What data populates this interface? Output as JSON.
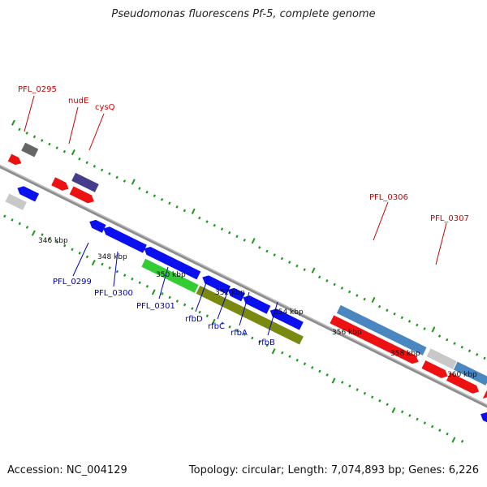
{
  "title": "Pseudomonas fluorescens Pf-5, complete genome",
  "footer": {
    "accession": "Accession: NC_004129",
    "summary": "Topology: circular; Length: 7,074,893 bp; Genes: 6,226"
  },
  "colors": {
    "backbone": "#8c8c8c",
    "tick": "#1a9a1a",
    "label_forward": "#cc0000",
    "label_reverse": "#0000bb"
  },
  "scale_labels": [
    "346 kbp",
    "348 kbp",
    "350 kbp",
    "352 kbp",
    "354 kbp",
    "356 kbp",
    "358 kbp",
    "360 kbp"
  ],
  "gene_labels": [
    {
      "text": "PFL_0295",
      "strand": "forward"
    },
    {
      "text": "nudE",
      "strand": "forward"
    },
    {
      "text": "cysQ",
      "strand": "forward"
    },
    {
      "text": "PFL_0306",
      "strand": "forward"
    },
    {
      "text": "PFL_0307",
      "strand": "forward"
    },
    {
      "text": "PFL_0299",
      "strand": "reverse"
    },
    {
      "text": "PFL_0300",
      "strand": "reverse"
    },
    {
      "text": "PFL_0301",
      "strand": "reverse"
    },
    {
      "text": "rfbD",
      "strand": "reverse"
    },
    {
      "text": "rfbC",
      "strand": "reverse"
    },
    {
      "text": "rfbA",
      "strand": "reverse"
    },
    {
      "text": "rfbB",
      "strand": "reverse"
    }
  ],
  "features": [
    {
      "name": "gray-block-forward",
      "color": "#666666",
      "strand": "forward"
    },
    {
      "name": "red-small-forward",
      "color": "#ee1111",
      "strand": "forward"
    },
    {
      "name": "red-gene-1",
      "color": "#ee1111",
      "strand": "forward"
    },
    {
      "name": "purple-gene-nudE",
      "color": "#443d8c",
      "strand": "forward"
    },
    {
      "name": "red-gene-cysQ",
      "color": "#ee1111",
      "strand": "forward"
    },
    {
      "name": "blue-gene-left",
      "color": "#0a10ee",
      "strand": "reverse"
    },
    {
      "name": "light-gray-block",
      "color": "#c8c8c8",
      "strand": "reverse"
    },
    {
      "name": "blue-gene-small",
      "color": "#0a10ee",
      "strand": "reverse"
    },
    {
      "name": "blue-gene-PFL_0299",
      "color": "#0a10ee",
      "strand": "reverse"
    },
    {
      "name": "blue-gene-PFL_0300",
      "color": "#0a10ee",
      "strand": "reverse"
    },
    {
      "name": "green-gene-PFL_0301",
      "color": "#33cc33",
      "strand": "reverse"
    },
    {
      "name": "blue-gene-rfbD",
      "color": "#0a10ee",
      "strand": "reverse"
    },
    {
      "name": "blue-gene-rfbC",
      "color": "#0a10ee",
      "strand": "reverse"
    },
    {
      "name": "blue-gene-rfbA",
      "color": "#0a10ee",
      "strand": "reverse"
    },
    {
      "name": "blue-gene-rfbB",
      "color": "#0a10ee",
      "strand": "reverse"
    },
    {
      "name": "olive-block",
      "color": "#7a8a10",
      "strand": "reverse"
    },
    {
      "name": "steelblue-block-PFL_0306",
      "color": "#4a87c0",
      "strand": "forward"
    },
    {
      "name": "red-gene-PFL_0306",
      "color": "#ee1111",
      "strand": "forward"
    },
    {
      "name": "light-gray-block-2",
      "color": "#c8c8c8",
      "strand": "forward"
    },
    {
      "name": "steelblue-block-PFL_0307",
      "color": "#4a87c0",
      "strand": "forward"
    },
    {
      "name": "red-gene-PFL_0307a",
      "color": "#ee1111",
      "strand": "forward"
    },
    {
      "name": "red-gene-PFL_0307b",
      "color": "#ee1111",
      "strand": "forward"
    },
    {
      "name": "red-arrow-edge",
      "color": "#ee1111",
      "strand": "forward"
    },
    {
      "name": "blue-arrow-edge",
      "color": "#0a10ee",
      "strand": "reverse"
    }
  ]
}
